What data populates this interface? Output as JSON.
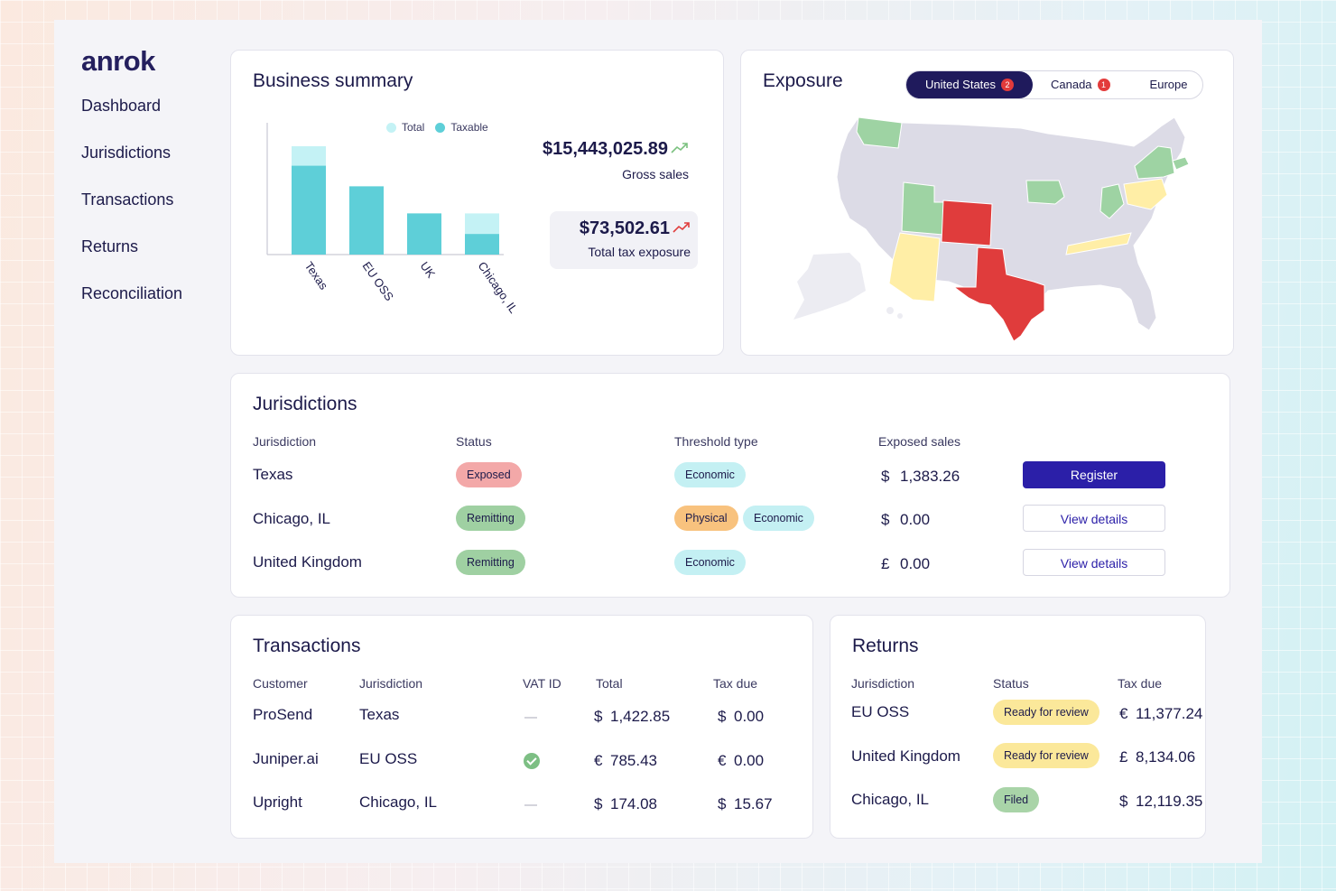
{
  "brand": {
    "logo": "anrok"
  },
  "nav": [
    {
      "label": "Dashboard"
    },
    {
      "label": "Jurisdictions"
    },
    {
      "label": "Transactions"
    },
    {
      "label": "Returns"
    },
    {
      "label": "Reconciliation"
    }
  ],
  "business_summary": {
    "title": "Business summary",
    "legend": {
      "total": "Total",
      "taxable": "Taxable"
    },
    "gross_sales_value": "$15,443,025.89",
    "gross_sales_label": "Gross sales",
    "tax_exposure_value": "$73,502.61",
    "tax_exposure_label": "Total tax exposure"
  },
  "chart_data": {
    "type": "bar",
    "categories": [
      "Texas",
      "EU OSS",
      "UK",
      "Chicago, IL"
    ],
    "series": [
      {
        "name": "Total",
        "values": [
          100,
          63,
          38,
          38
        ]
      },
      {
        "name": "Taxable",
        "values": [
          82,
          63,
          38,
          19
        ]
      }
    ],
    "title": "",
    "xlabel": "",
    "ylabel": "",
    "ylim": [
      0,
      100
    ],
    "grid": false,
    "legend": "top-right",
    "colors": {
      "total": "#c4f2f5",
      "taxable": "#5ecfd8"
    }
  },
  "exposure": {
    "title": "Exposure",
    "tabs": [
      {
        "label": "United States",
        "badge": "2",
        "active": true
      },
      {
        "label": "Canada",
        "badge": "1",
        "active": false
      },
      {
        "label": "Europe",
        "badge": "",
        "active": false
      }
    ],
    "map_colors": {
      "exposed": "#e03c3c",
      "near_threshold": "#ffeea6",
      "registered": "#9ed3a3",
      "default": "#dcdbe6"
    }
  },
  "jurisdictions": {
    "title": "Jurisdictions",
    "columns": [
      "Jurisdiction",
      "Status",
      "Threshold type",
      "Exposed sales"
    ],
    "rows": [
      {
        "name": "Texas",
        "status": "Exposed",
        "thresholds": [
          "Economic"
        ],
        "currency": "$",
        "amount": "1,383.26",
        "action": "Register"
      },
      {
        "name": "Chicago, IL",
        "status": "Remitting",
        "thresholds": [
          "Physical",
          "Economic"
        ],
        "currency": "$",
        "amount": "0.00",
        "action": "View details"
      },
      {
        "name": "United Kingdom",
        "status": "Remitting",
        "thresholds": [
          "Economic"
        ],
        "currency": "£",
        "amount": "0.00",
        "action": "View details"
      }
    ]
  },
  "transactions": {
    "title": "Transactions",
    "columns": [
      "Customer",
      "Jurisdiction",
      "VAT ID",
      "Total",
      "Tax due"
    ],
    "rows": [
      {
        "customer": "ProSend",
        "jurisdiction": "Texas",
        "vat": "none",
        "total_cur": "$",
        "total": "1,422.85",
        "tax_cur": "$",
        "tax": "0.00"
      },
      {
        "customer": "Juniper.ai",
        "jurisdiction": "EU OSS",
        "vat": "verified",
        "total_cur": "€",
        "total": "785.43",
        "tax_cur": "€",
        "tax": "0.00"
      },
      {
        "customer": "Upright",
        "jurisdiction": "Chicago, IL",
        "vat": "none",
        "total_cur": "$",
        "total": "174.08",
        "tax_cur": "$",
        "tax": "15.67"
      }
    ]
  },
  "returns": {
    "title": "Returns",
    "columns": [
      "Jurisdiction",
      "Status",
      "Tax due"
    ],
    "rows": [
      {
        "jurisdiction": "EU OSS",
        "status": "Ready for review",
        "cur": "€",
        "amount": "11,377.24"
      },
      {
        "jurisdiction": "United Kingdom",
        "status": "Ready for review",
        "cur": "£",
        "amount": "8,134.06"
      },
      {
        "jurisdiction": "Chicago, IL",
        "status": "Filed",
        "cur": "$",
        "amount": "12,119.35"
      }
    ]
  }
}
